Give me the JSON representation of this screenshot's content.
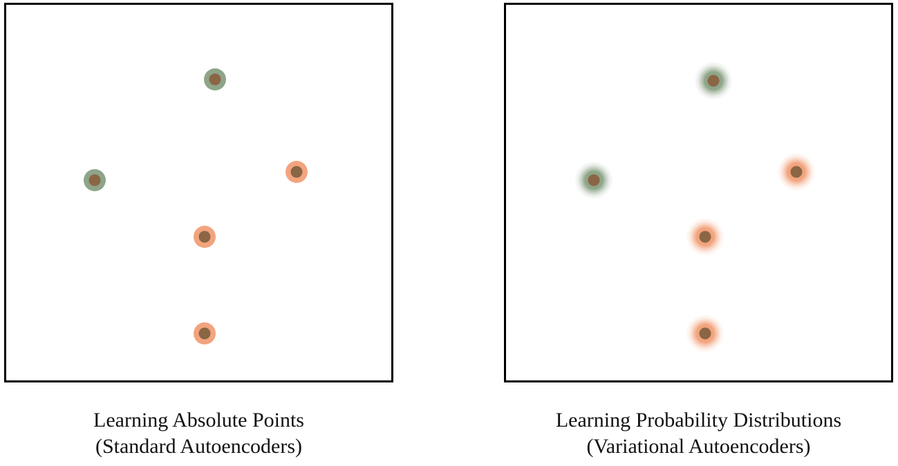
{
  "colors": {
    "green": "#8ea589",
    "orange": "#f2a47e",
    "core": "#8a6645",
    "border": "#000000"
  },
  "panels": [
    {
      "caption_line1": "Learning Absolute Points",
      "caption_line2": "(Standard Autoencoders)",
      "style": "point",
      "points": [
        {
          "color": "green"
        },
        {
          "color": "green"
        },
        {
          "color": "orange"
        },
        {
          "color": "orange"
        },
        {
          "color": "orange"
        }
      ]
    },
    {
      "caption_line1": "Learning Probability Distributions",
      "caption_line2": "(Variational Autoencoders)",
      "style": "distribution",
      "points": [
        {
          "color": "green"
        },
        {
          "color": "green"
        },
        {
          "color": "orange"
        },
        {
          "color": "orange"
        },
        {
          "color": "orange"
        }
      ]
    }
  ]
}
